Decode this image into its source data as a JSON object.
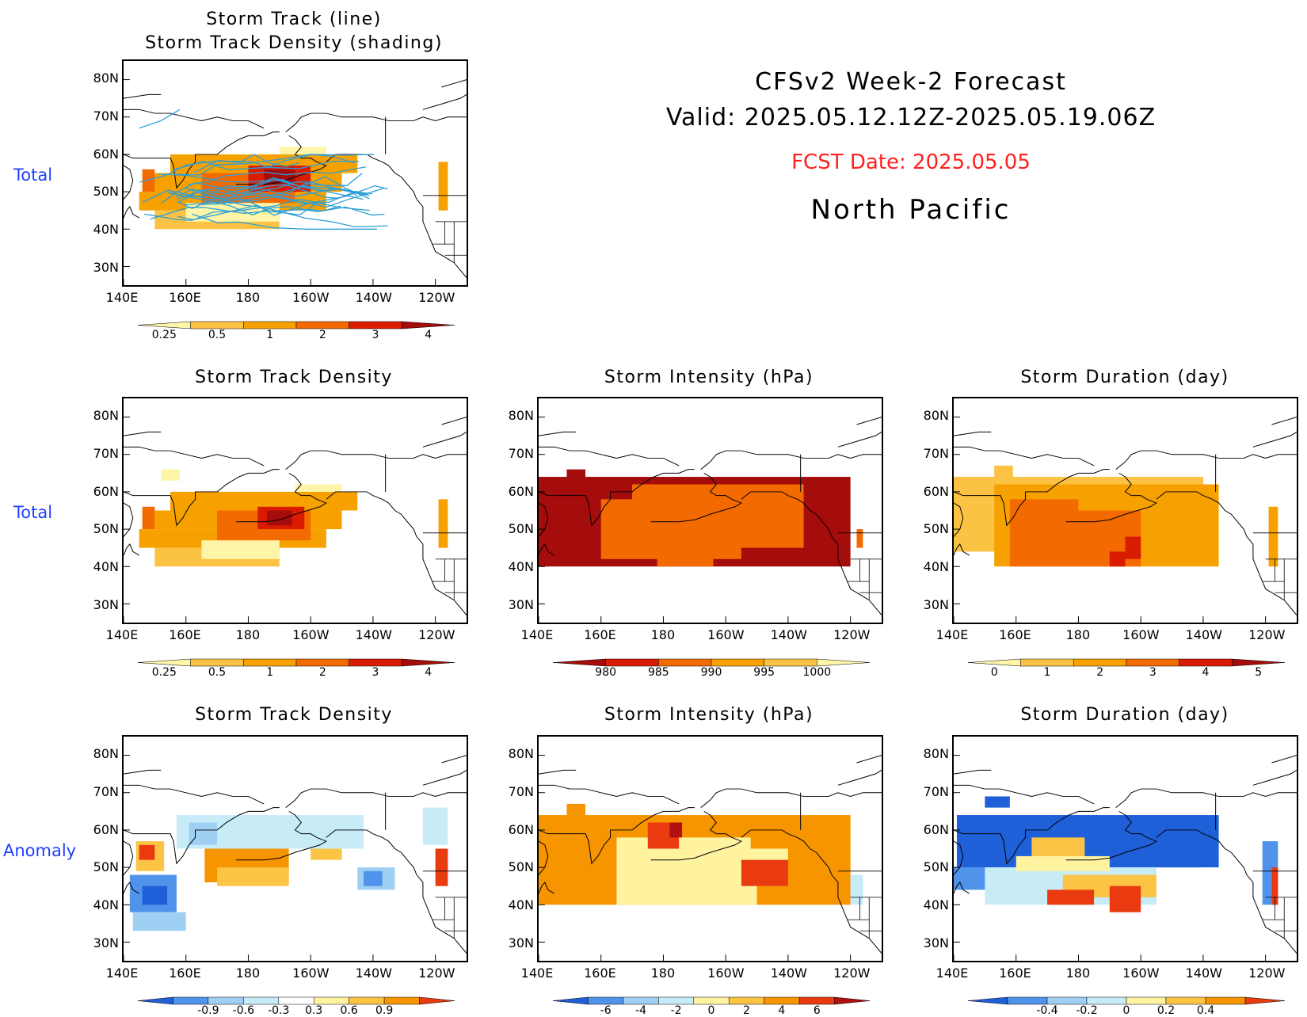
{
  "header": {
    "title": "CFSv2  Week-2  Forecast",
    "valid": "Valid:  2025.05.12.12Z-2025.05.19.06Z",
    "fcst": "FCST Date: 2025.05.05",
    "region": "North  Pacific",
    "fcst_color": "#ff2020"
  },
  "row_labels": {
    "row1": "Total",
    "row2": "Total",
    "row3": "Anomaly"
  },
  "axes": {
    "lat_ticks": [
      "80N",
      "70N",
      "60N",
      "50N",
      "40N",
      "30N"
    ],
    "lon_ticks": [
      "140E",
      "160E",
      "180",
      "160W",
      "140W",
      "120W"
    ]
  },
  "colorbars": {
    "density": {
      "labels": [
        "0.25",
        "0.5",
        "1",
        "2",
        "3",
        "4"
      ],
      "colors": [
        "#fff5a8",
        "#fbc243",
        "#f7a100",
        "#f36a00",
        "#d91c00",
        "#a50c0c"
      ]
    },
    "intensity": {
      "labels": [
        "980",
        "985",
        "990",
        "995",
        "1000"
      ],
      "colors": [
        "#a50c0c",
        "#d91c00",
        "#f36a00",
        "#f7a100",
        "#fbc243",
        "#fff5a8"
      ]
    },
    "duration": {
      "labels": [
        "0",
        "1",
        "2",
        "3",
        "4",
        "5"
      ],
      "colors": [
        "#fff5a8",
        "#fbc243",
        "#f7a100",
        "#f36a00",
        "#d91c00",
        "#a50c0c"
      ]
    },
    "density_anom": {
      "labels": [
        "-0.9",
        "-0.6",
        "-0.3",
        "0.3",
        "0.6",
        "0.9"
      ],
      "colors": [
        "#1f5fd8",
        "#4f93ea",
        "#9fd0f4",
        "#c7ecf8",
        "#ffffff",
        "#fff3a0",
        "#fcc445",
        "#f79500",
        "#ea3a10"
      ]
    },
    "intensity_anom": {
      "labels": [
        "-6",
        "-4",
        "-2",
        "0",
        "2",
        "4",
        "6"
      ],
      "colors": [
        "#1f5fd8",
        "#4f93ea",
        "#9fd0f4",
        "#c7ecf8",
        "#fff3a0",
        "#fcc445",
        "#f79500",
        "#ea3a10",
        "#b01010"
      ]
    },
    "duration_anom": {
      "labels": [
        "-0.4",
        "-0.2",
        "0",
        "0.2",
        "0.4"
      ],
      "colors": [
        "#1f5fd8",
        "#4f93ea",
        "#9fd0f4",
        "#c7ecf8",
        "#fff3a0",
        "#fcc445",
        "#f79500",
        "#ea3a10"
      ]
    }
  },
  "panels": [
    {
      "id": "p1",
      "title_lines": [
        "Storm Track (line)",
        "Storm Track Density (shading)"
      ],
      "colorbar": "density",
      "cells": [
        [
          [
            40,
            45
          ],
          [
            150,
            190
          ],
          1
        ],
        [
          [
            45,
            50
          ],
          [
            145,
            205
          ],
          2
        ],
        [
          [
            50,
            55
          ],
          [
            150,
            210
          ],
          2
        ],
        [
          [
            55,
            60
          ],
          [
            155,
            215
          ],
          2
        ],
        [
          [
            47,
            55
          ],
          [
            165,
            195
          ],
          3
        ],
        [
          [
            50,
            57
          ],
          [
            180,
            200
          ],
          4
        ],
        [
          [
            52,
            56
          ],
          [
            185,
            195
          ],
          5
        ],
        [
          [
            42,
            47
          ],
          [
            160,
            190
          ],
          0
        ],
        [
          [
            60,
            62
          ],
          [
            190,
            205
          ],
          0
        ],
        [
          [
            45,
            58
          ],
          [
            241,
            244
          ],
          2
        ],
        [
          [
            50,
            56
          ],
          [
            146,
            150
          ],
          3
        ]
      ],
      "tracks": true
    },
    {
      "id": "p2",
      "title_lines": [
        "Storm Track Density"
      ],
      "colorbar": "density",
      "cells": [
        [
          [
            40,
            45
          ],
          [
            150,
            190
          ],
          1
        ],
        [
          [
            45,
            50
          ],
          [
            145,
            205
          ],
          2
        ],
        [
          [
            50,
            55
          ],
          [
            150,
            210
          ],
          2
        ],
        [
          [
            55,
            60
          ],
          [
            155,
            215
          ],
          2
        ],
        [
          [
            47,
            55
          ],
          [
            170,
            200
          ],
          3
        ],
        [
          [
            50,
            56
          ],
          [
            183,
            198
          ],
          4
        ],
        [
          [
            51,
            55
          ],
          [
            186,
            194
          ],
          5
        ],
        [
          [
            42,
            47
          ],
          [
            165,
            190
          ],
          0
        ],
        [
          [
            60,
            62
          ],
          [
            195,
            210
          ],
          0
        ],
        [
          [
            45,
            58
          ],
          [
            241,
            244
          ],
          2
        ],
        [
          [
            50,
            56
          ],
          [
            146,
            150
          ],
          3
        ],
        [
          [
            63,
            66
          ],
          [
            152,
            158
          ],
          0
        ]
      ],
      "tracks": false
    },
    {
      "id": "p3",
      "title_lines": [
        "Storm Intensity (hPa)"
      ],
      "colorbar": "intensity",
      "cells": [
        [
          [
            40,
            64
          ],
          [
            140,
            240
          ],
          0
        ],
        [
          [
            42,
            58
          ],
          [
            160,
            205
          ],
          2
        ],
        [
          [
            45,
            62
          ],
          [
            170,
            225
          ],
          2
        ],
        [
          [
            55,
            62
          ],
          [
            180,
            210
          ],
          2
        ],
        [
          [
            40,
            44
          ],
          [
            178,
            196
          ],
          2
        ],
        [
          [
            64,
            66
          ],
          [
            149,
            155
          ],
          0
        ],
        [
          [
            45,
            50
          ],
          [
            242,
            244
          ],
          2
        ]
      ],
      "tracks": false
    },
    {
      "id": "p4",
      "title_lines": [
        "Storm Duration (day)"
      ],
      "colorbar": "duration",
      "cells": [
        [
          [
            44,
            64
          ],
          [
            140,
            220
          ],
          1
        ],
        [
          [
            40,
            62
          ],
          [
            153,
            225
          ],
          2
        ],
        [
          [
            40,
            58
          ],
          [
            158,
            200
          ],
          3
        ],
        [
          [
            55,
            62
          ],
          [
            180,
            215
          ],
          2
        ],
        [
          [
            42,
            48
          ],
          [
            195,
            200
          ],
          4
        ],
        [
          [
            40,
            44
          ],
          [
            190,
            195
          ],
          4
        ],
        [
          [
            40,
            56
          ],
          [
            241,
            244
          ],
          2
        ],
        [
          [
            64,
            67
          ],
          [
            153,
            159
          ],
          1
        ]
      ],
      "tracks": false
    },
    {
      "id": "p5",
      "title_lines": [
        "Storm Track Density"
      ],
      "colorbar": "density_anom",
      "cells": [
        [
          [
            38,
            48
          ],
          [
            142,
            157
          ],
          1
        ],
        [
          [
            40,
            45
          ],
          [
            146,
            154
          ],
          0
        ],
        [
          [
            33,
            38
          ],
          [
            143,
            160
          ],
          2
        ],
        [
          [
            49,
            57
          ],
          [
            144,
            153
          ],
          6
        ],
        [
          [
            52,
            56
          ],
          [
            145,
            150
          ],
          8
        ],
        [
          [
            46,
            59
          ],
          [
            166,
            193
          ],
          7
        ],
        [
          [
            45,
            50
          ],
          [
            170,
            193
          ],
          6
        ],
        [
          [
            55,
            64
          ],
          [
            157,
            217
          ],
          3
        ],
        [
          [
            44,
            50
          ],
          [
            215,
            227
          ],
          2
        ],
        [
          [
            45,
            49
          ],
          [
            217,
            223
          ],
          1
        ],
        [
          [
            56,
            62
          ],
          [
            161,
            170
          ],
          2
        ],
        [
          [
            52,
            55
          ],
          [
            200,
            210
          ],
          6
        ],
        [
          [
            56,
            66
          ],
          [
            236,
            244
          ],
          3
        ],
        [
          [
            45,
            55
          ],
          [
            240,
            244
          ],
          8
        ]
      ],
      "tracks": false
    },
    {
      "id": "p6",
      "title_lines": [
        "Storm Intensity (hPa)"
      ],
      "colorbar": "intensity_anom",
      "cells": [
        [
          [
            40,
            64
          ],
          [
            140,
            240
          ],
          6
        ],
        [
          [
            40,
            58
          ],
          [
            165,
            210
          ],
          4
        ],
        [
          [
            45,
            55
          ],
          [
            205,
            220
          ],
          4
        ],
        [
          [
            45,
            52
          ],
          [
            205,
            220
          ],
          7
        ],
        [
          [
            55,
            62
          ],
          [
            175,
            185
          ],
          7
        ],
        [
          [
            58,
            62
          ],
          [
            182,
            186
          ],
          8
        ],
        [
          [
            64,
            67
          ],
          [
            149,
            155
          ],
          6
        ],
        [
          [
            40,
            48
          ],
          [
            240,
            244
          ],
          3
        ],
        [
          [
            55,
            62
          ],
          [
            208,
            220
          ],
          6
        ]
      ],
      "tracks": false
    },
    {
      "id": "p7",
      "title_lines": [
        "Storm Duration (day)"
      ],
      "colorbar": "duration_anom",
      "cells": [
        [
          [
            50,
            64
          ],
          [
            141,
            225
          ],
          0
        ],
        [
          [
            40,
            50
          ],
          [
            150,
            205
          ],
          3
        ],
        [
          [
            42,
            48
          ],
          [
            175,
            205
          ],
          5
        ],
        [
          [
            38,
            45
          ],
          [
            190,
            200
          ],
          7
        ],
        [
          [
            40,
            44
          ],
          [
            170,
            185
          ],
          7
        ],
        [
          [
            52,
            58
          ],
          [
            165,
            182
          ],
          5
        ],
        [
          [
            49,
            53
          ],
          [
            160,
            190
          ],
          4
        ],
        [
          [
            50,
            58
          ],
          [
            205,
            220
          ],
          0
        ],
        [
          [
            44,
            50
          ],
          [
            140,
            150
          ],
          1
        ],
        [
          [
            66,
            69
          ],
          [
            150,
            158
          ],
          0
        ],
        [
          [
            40,
            57
          ],
          [
            239,
            244
          ],
          1
        ],
        [
          [
            40,
            50
          ],
          [
            242,
            244
          ],
          7
        ]
      ],
      "tracks": false
    }
  ]
}
